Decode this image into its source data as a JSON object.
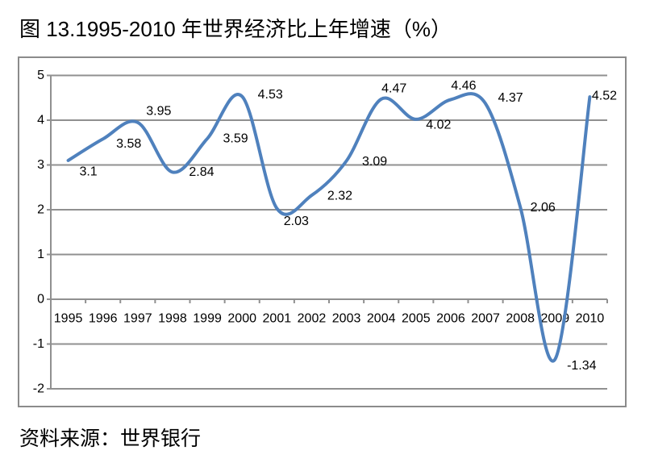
{
  "page": {
    "title": "图 13.1995-2010 年世界经济比上年增速（%）",
    "source": "资料来源：世界银行"
  },
  "chart_data": {
    "type": "line",
    "title": "图 13.1995-2010 年世界经济比上年增速（%）",
    "categories": [
      "1995",
      "1996",
      "1997",
      "1998",
      "1999",
      "2000",
      "2001",
      "2002",
      "2003",
      "2004",
      "2005",
      "2006",
      "2007",
      "2008",
      "2009",
      "2010"
    ],
    "values": [
      3.1,
      3.58,
      3.95,
      2.84,
      3.59,
      4.53,
      2.03,
      2.32,
      3.09,
      4.47,
      4.02,
      4.46,
      4.37,
      2.06,
      -1.34,
      4.52
    ],
    "data_labels": [
      "3.1",
      "3.58",
      "3.95",
      "2.84",
      "3.59",
      "4.53",
      "2.03",
      "2.32",
      "3.09",
      "4.47",
      "4.02",
      "4.46",
      "4.37",
      "2.06",
      "-1.34",
      "4.52"
    ],
    "xlabel": "",
    "ylabel": "",
    "ylim": [
      -2,
      5
    ],
    "y_ticks": [
      5,
      4,
      3,
      2,
      1,
      0,
      -1,
      -2
    ],
    "grid": true,
    "legend": "none",
    "line_color": "#4F81BD",
    "grid_color": "#909090",
    "label_color": "#000000",
    "source": "资料来源：世界银行"
  }
}
